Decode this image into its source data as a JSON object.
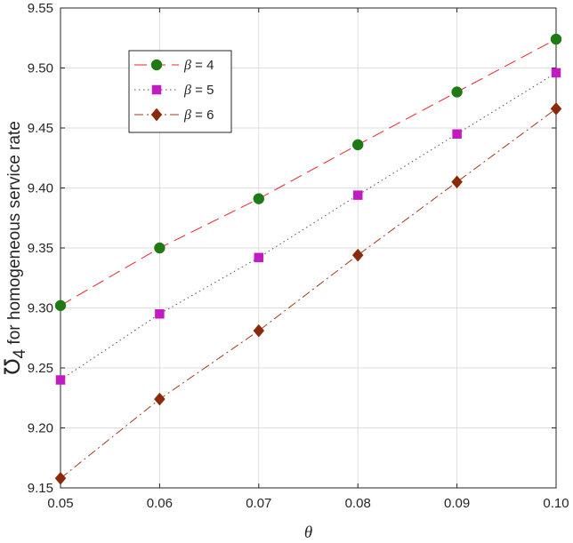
{
  "chart_data": {
    "type": "line",
    "title": "",
    "xlabel": "θ",
    "ylabel": {
      "symbol": "Ʊ",
      "subscript": "4",
      "text": " for  homogeneous service rate"
    },
    "x": [
      0.05,
      0.06,
      0.07,
      0.08,
      0.09,
      0.1
    ],
    "xlim": [
      0.05,
      0.1
    ],
    "ylim": [
      9.15,
      9.55
    ],
    "xticks": [
      "0.05",
      "0.06",
      "0.07",
      "0.08",
      "0.09",
      "0.10"
    ],
    "yticks": [
      "9.15",
      "9.20",
      "9.25",
      "9.30",
      "9.35",
      "9.40",
      "9.45",
      "9.50",
      "9.55"
    ],
    "grid": true,
    "legend_position": "top-left",
    "series": [
      {
        "name": "β = 4",
        "label_symbol": "β",
        "label_value": " = 4",
        "values": [
          9.302,
          9.35,
          9.391,
          9.436,
          9.48,
          9.524
        ],
        "color": "#e8262a",
        "line": "dashed",
        "marker": "circle",
        "marker_color": "#1f7a14"
      },
      {
        "name": "β = 5",
        "label_symbol": "β",
        "label_value": " = 5",
        "values": [
          9.24,
          9.295,
          9.342,
          9.394,
          9.445,
          9.496
        ],
        "color": "#4a4a8a",
        "line": "dotted",
        "marker": "square",
        "marker_color": "#c21bc2"
      },
      {
        "name": "β = 6",
        "label_symbol": "β",
        "label_value": " = 6",
        "values": [
          9.158,
          9.224,
          9.281,
          9.344,
          9.405,
          9.466
        ],
        "color": "#a03a1a",
        "line": "dashdot",
        "marker": "diamond",
        "marker_color": "#8b2a0a"
      }
    ]
  }
}
